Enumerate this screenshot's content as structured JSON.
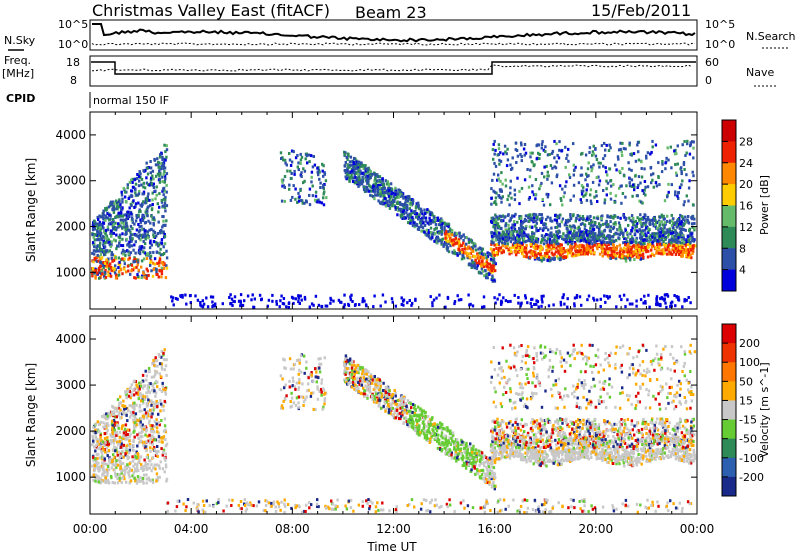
{
  "header": {
    "title": "Christmas Valley East (fitACF)",
    "beam": "Beam 23",
    "date": "15/Feb/2011"
  },
  "strips": {
    "nsky_label": "N.Sky",
    "nsearch_label": "N.Search",
    "noise_ticks": [
      "10^5",
      "10^0"
    ],
    "freq_label": "Freq.",
    "freq_unit": "[MHz]",
    "freq_ticks": [
      "18",
      "8"
    ],
    "nave_label": "Nave",
    "nave_ticks": [
      "60",
      "0"
    ],
    "cpid_label": "CPID",
    "cpid_value": "normal 150 IF"
  },
  "chart_data": [
    {
      "type": "heatmap",
      "name_text": "power",
      "ylabel": "Slant Range [km]",
      "xlabel": "",
      "x_ticks": [
        "00:00",
        "04:00",
        "08:00",
        "12:00",
        "16:00",
        "20:00",
        "00:00"
      ],
      "xlim": [
        0,
        24
      ],
      "ylim": [
        200,
        4500
      ],
      "y_ticks": [
        1000,
        2000,
        3000,
        4000
      ],
      "colorbar_label": "Power [dB]",
      "colorbar_ticks": [
        4,
        8,
        12,
        16,
        20,
        24,
        28
      ],
      "colors": [
        "#0000dd",
        "#2c4fa8",
        "#2e8b57",
        "#66bb6a",
        "#ffcc00",
        "#ff8800",
        "#ee2200",
        "#cc0000"
      ]
    },
    {
      "type": "heatmap",
      "name_text": "velocity",
      "ylabel": "Slant Range [km]",
      "xlabel": "Time UT",
      "x_ticks": [
        "00:00",
        "04:00",
        "08:00",
        "12:00",
        "16:00",
        "20:00",
        "00:00"
      ],
      "xlim": [
        0,
        24
      ],
      "ylim": [
        200,
        4500
      ],
      "y_ticks": [
        1000,
        2000,
        3000,
        4000
      ],
      "colorbar_label": "Velocity [m s^-1]",
      "colorbar_ticks": [
        200,
        100,
        50,
        15,
        -15,
        -50,
        -100,
        -200
      ],
      "colors": [
        "#1a2a8a",
        "#2c5fb0",
        "#2e8b57",
        "#66cc33",
        "#c8c8c8",
        "#ffaa00",
        "#ff7700",
        "#ee3300",
        "#dd0000"
      ]
    }
  ]
}
